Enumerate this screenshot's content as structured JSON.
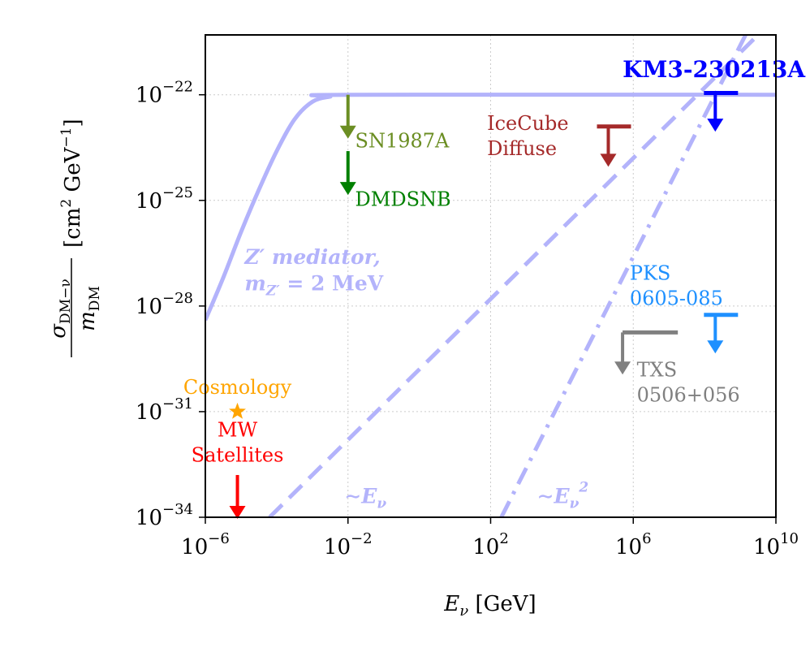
{
  "chart_data": {
    "type": "line",
    "title": "",
    "xlabel": {
      "main": "E",
      "sub": "ν",
      "unit": " [GeV]"
    },
    "ylabel": {
      "num_main": "σ",
      "num_sub": "DM−ν",
      "den_main": "m",
      "den_sub": "DM",
      "unit_open": "[cm",
      "unit_sq": "2",
      "unit_gev": " GeV",
      "unit_inv": "−1",
      "unit_close": "]"
    },
    "xscale": "log10",
    "yscale": "log10",
    "xlim": [
      -6,
      10
    ],
    "ylim": [
      -34,
      -20.3
    ],
    "x_ticks": [
      {
        "value": -6,
        "base": "10",
        "exp": "−6"
      },
      {
        "value": -2,
        "base": "10",
        "exp": "−2"
      },
      {
        "value": 2,
        "base": "10",
        "exp": "2"
      },
      {
        "value": 6,
        "base": "10",
        "exp": "6"
      },
      {
        "value": 10,
        "base": "10",
        "exp": "10"
      }
    ],
    "y_ticks": [
      {
        "value": -22,
        "base": "10",
        "exp": "−22"
      },
      {
        "value": -25,
        "base": "10",
        "exp": "−25"
      },
      {
        "value": -28,
        "base": "10",
        "exp": "−28"
      },
      {
        "value": -31,
        "base": "10",
        "exp": "−31"
      },
      {
        "value": -34,
        "base": "10",
        "exp": "−34"
      }
    ],
    "grid": true,
    "line_color": "#b3b3fb",
    "series": [
      {
        "name": "Z′ mediator, m_Z′ = 2 MeV",
        "style": "solid",
        "points": [
          [
            -6,
            -28.4
          ],
          [
            -5.5,
            -27.2
          ],
          [
            -5,
            -25.9
          ],
          [
            -4.5,
            -24.7
          ],
          [
            -4,
            -23.6
          ],
          [
            -3.5,
            -22.7
          ],
          [
            -3,
            -22.2
          ],
          [
            -2.5,
            -22.05
          ],
          [
            -2,
            -22.0
          ],
          [
            10,
            -22.0
          ]
        ]
      },
      {
        "name": "~E_ν",
        "style": "dashed",
        "points": [
          [
            -4.2,
            -34.0
          ],
          [
            10.0,
            -19.8
          ]
        ]
      },
      {
        "name": "~E_ν^2",
        "style": "dashdot",
        "points": [
          [
            2.3,
            -34.0
          ],
          [
            9.2,
            -20.2
          ]
        ]
      }
    ],
    "series_labels": [
      {
        "id": "zmed-line1",
        "text": "Z′ mediator,",
        "x": -4.9,
        "y": -26.8
      },
      {
        "id": "zmed-line2",
        "text": "m",
        "sub": "Z′",
        "rest": " = 2 MeV",
        "x": -4.9,
        "y": -27.55
      },
      {
        "id": "e-linear",
        "text": "∼E",
        "sub": "ν",
        "x": -2.1,
        "y": -33.6
      },
      {
        "id": "e-square",
        "text": "∼E",
        "sub": "ν",
        "sup": "2",
        "x": 3.3,
        "y": -33.6
      }
    ],
    "limits": [
      {
        "name": "KM3-230213A",
        "color": "#0000ff",
        "bar": true,
        "x": 8.3,
        "y": -21.95,
        "arrow_to": -23.0,
        "label": [
          "KM3-230213A"
        ],
        "bold": true,
        "label_x": 5.7,
        "label_y": -21.5,
        "anchor": "start"
      },
      {
        "name": "IceCube Diffuse",
        "color": "#a52a2a",
        "bar": true,
        "x": 5.3,
        "y": -22.9,
        "arrow_to": -24.0,
        "label": [
          "IceCube",
          "Diffuse"
        ],
        "label_x": 1.9,
        "label_y": -23.0,
        "anchor": "start"
      },
      {
        "name": "SN1987A",
        "color": "#6b8e23",
        "bar": false,
        "x": -2.0,
        "y": -22.0,
        "arrow_to": -23.2,
        "label": [
          "SN1987A"
        ],
        "label_x": -1.8,
        "label_y": -23.5,
        "anchor": "start"
      },
      {
        "name": "DMDSNB",
        "color": "#008000",
        "bar": false,
        "x": -2.0,
        "y": -23.6,
        "arrow_to": -24.8,
        "label": [
          "DMDSNB"
        ],
        "label_x": -1.8,
        "label_y": -25.15,
        "anchor": "start"
      },
      {
        "name": "PKS 0605-085",
        "color": "#1e90ff",
        "bar": true,
        "x": 8.3,
        "y": -28.25,
        "arrow_to": -29.3,
        "label": [
          "PKS",
          "0605-085"
        ],
        "label_x": 5.9,
        "label_y": -27.25,
        "anchor": "start"
      },
      {
        "name": "TXS 0506+056",
        "color": "#808080",
        "bar": true,
        "x": 5.7,
        "y": -28.75,
        "arrow_to": -29.9,
        "bar_from": 5.7,
        "bar_to": 7.25,
        "label": [
          "TXS",
          "0506+056"
        ],
        "label_x": 6.1,
        "label_y": -30.0,
        "anchor": "start"
      },
      {
        "name": "MW Satellites",
        "color": "#ff0000",
        "bar": false,
        "x": -5.1,
        "y": -32.8,
        "arrow_to": -34.0,
        "label": [
          "MW",
          "Satellites"
        ],
        "label_x": -5.1,
        "label_y": -31.7,
        "anchor": "middle"
      }
    ],
    "points": [
      {
        "name": "Cosmology",
        "color": "#ffa500",
        "x": -5.1,
        "y": -31.0,
        "marker": "star",
        "label": [
          "Cosmology"
        ],
        "label_x": -5.1,
        "label_y": -30.5
      }
    ]
  }
}
